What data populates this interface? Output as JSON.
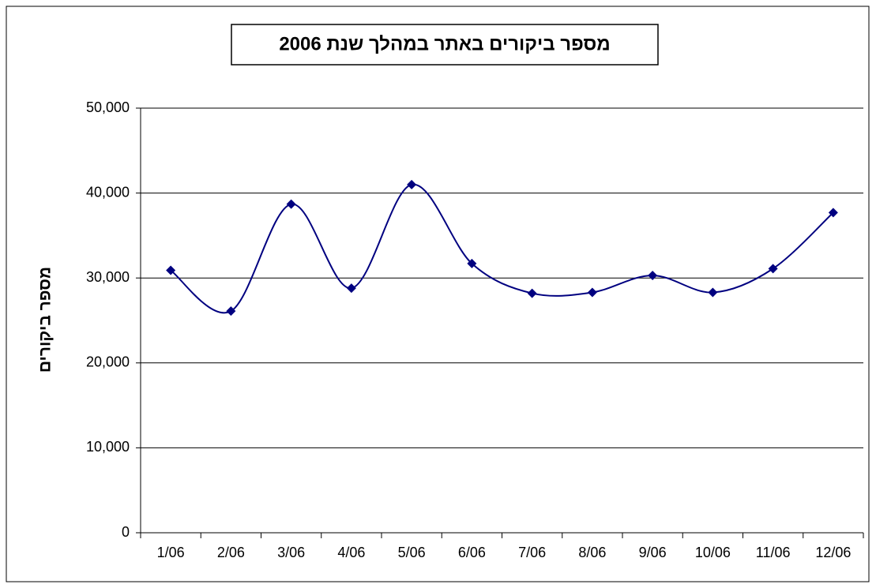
{
  "chart_data": {
    "type": "line",
    "title": "מספר ביקורים באתר במהלך שנת 2006",
    "y_label": "מספר ביקורים",
    "categories": [
      "1/06",
      "2/06",
      "3/06",
      "4/06",
      "5/06",
      "6/06",
      "7/06",
      "8/06",
      "9/06",
      "10/06",
      "11/06",
      "12/06"
    ],
    "values": [
      30900,
      26100,
      38700,
      28800,
      41000,
      31700,
      28200,
      28300,
      30300,
      28300,
      31100,
      37700
    ],
    "color": "#000080",
    "smooth": true,
    "ylim": [
      0,
      50000
    ],
    "yticks": [
      0,
      {
        "value": 10000,
        "label": "10,000"
      },
      {
        "value": 20000,
        "label": "20,000"
      },
      {
        "value": 30000,
        "label": "30,000"
      },
      {
        "value": 40000,
        "label": "40,000"
      },
      {
        "value": 50000,
        "label": "50,000"
      }
    ],
    "grid": true
  }
}
